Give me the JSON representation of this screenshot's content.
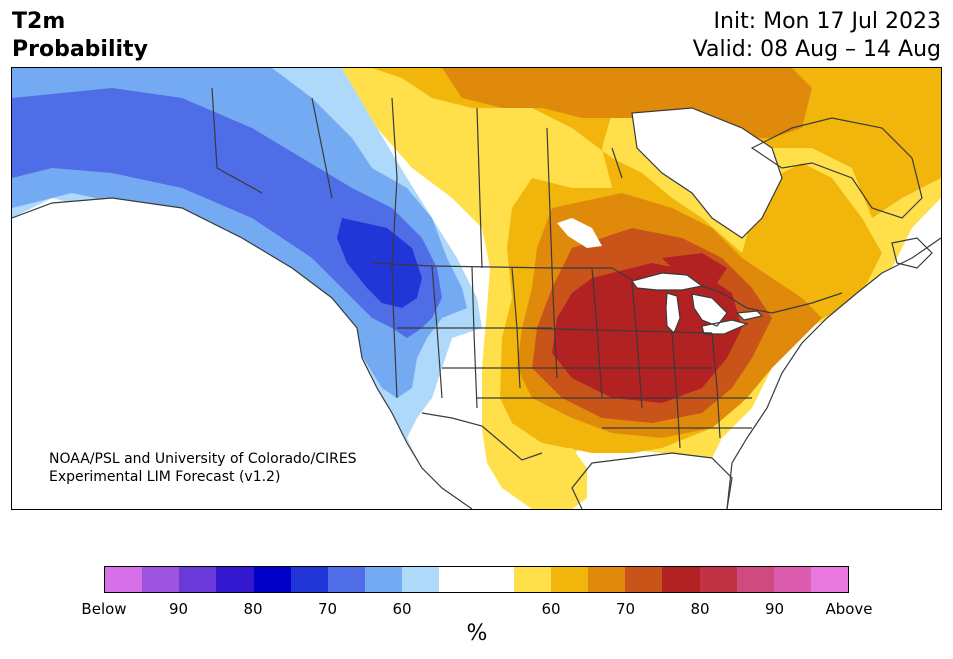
{
  "title": {
    "variable": "T2m",
    "subtitle": "Probability",
    "init": "Init: Mon 17 Jul 2023",
    "valid": "Valid: 08 Aug – 14 Aug"
  },
  "credit": {
    "line1": "NOAA/PSL and University of Colorado/CIRES",
    "line2": "Experimental LIM Forecast (v1.2)"
  },
  "colorbar": {
    "colors": [
      "#d670e8",
      "#9d55e0",
      "#6a3ad8",
      "#3318d0",
      "#0000c8",
      "#2236d8",
      "#4f6de6",
      "#74aaf2",
      "#aed9fb",
      "#ffffff",
      "#ffffff",
      "#ffe04a",
      "#f1b50c",
      "#e08a0c",
      "#c9541a",
      "#b22222",
      "#c23245",
      "#cf4a7e",
      "#dc5cad",
      "#e878de"
    ],
    "tick_labels": [
      "Below",
      "90",
      "80",
      "70",
      "60",
      "60",
      "70",
      "80",
      "90",
      "Above"
    ],
    "unit": "%"
  },
  "map": {
    "region": "North America",
    "projection": "conic",
    "palette": {
      "cold_60": "#aed9fb",
      "cold_70": "#74aaf2",
      "cold_80": "#4f6de6",
      "cold_90": "#2236d8",
      "warm_60": "#ffe04a",
      "warm_70": "#f1b50c",
      "warm_80": "#e08a0c",
      "warm_90": "#c9541a",
      "warm_100": "#b22222",
      "border": "#3a3a3a"
    },
    "features": [
      "coastlines",
      "country-borders",
      "state-province-borders",
      "great-lakes"
    ]
  }
}
